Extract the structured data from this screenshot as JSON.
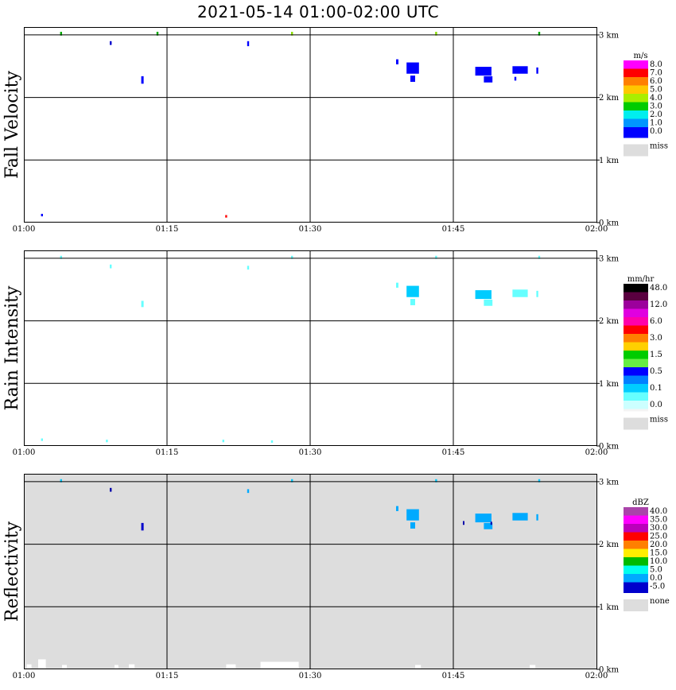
{
  "title": "2021-05-14   01:00-02:00 UTC",
  "x_ticks": [
    "01:00",
    "01:15",
    "01:30",
    "01:45",
    "02:00"
  ],
  "y_ticks": [
    "0 km",
    "1 km",
    "2 km",
    "3 km"
  ],
  "chart_data": [
    {
      "type": "heatmap",
      "title": "Fall Velocity",
      "unit": "m/s",
      "xlim": [
        "01:00",
        "02:00"
      ],
      "ylim_km": [
        0,
        3.05
      ],
      "background": "#ffffff",
      "legend": [
        {
          "label": "8.0",
          "color": "#ff00ff"
        },
        {
          "label": "7.0",
          "color": "#ff0000"
        },
        {
          "label": "6.0",
          "color": "#ff8000"
        },
        {
          "label": "5.0",
          "color": "#ffc800"
        },
        {
          "label": "4.0",
          "color": "#aaee00"
        },
        {
          "label": "3.0",
          "color": "#00cc00"
        },
        {
          "label": "2.0",
          "color": "#00eeee"
        },
        {
          "label": "1.0",
          "color": "#0096ff"
        },
        {
          "label": "0.0",
          "color": "#0000ff"
        }
      ],
      "legend_extra": "#0000ff",
      "missing_label": "miss",
      "missing_color": "#dddddd",
      "echoes": [
        {
          "t": 3.8,
          "h": 2.99,
          "dt": 0.2,
          "dh": 0.06,
          "color": "#00aa00"
        },
        {
          "t": 9.0,
          "h": 2.84,
          "dt": 0.2,
          "dh": 0.06,
          "color": "#0000cc"
        },
        {
          "t": 12.3,
          "h": 2.22,
          "dt": 0.25,
          "dh": 0.12,
          "color": "#0000ff"
        },
        {
          "t": 1.8,
          "h": 0.1,
          "dt": 0.2,
          "dh": 0.04,
          "color": "#0000ff"
        },
        {
          "t": 13.9,
          "h": 2.99,
          "dt": 0.2,
          "dh": 0.06,
          "color": "#00aa00"
        },
        {
          "t": 23.4,
          "h": 2.82,
          "dt": 0.2,
          "dh": 0.08,
          "color": "#0000ff"
        },
        {
          "t": 21.1,
          "h": 0.08,
          "dt": 0.2,
          "dh": 0.04,
          "color": "#ff0000"
        },
        {
          "t": 28.0,
          "h": 2.99,
          "dt": 0.2,
          "dh": 0.06,
          "color": "#88dd00"
        },
        {
          "t": 39.0,
          "h": 2.53,
          "dt": 0.25,
          "dh": 0.08,
          "color": "#0000ff"
        },
        {
          "t": 40.1,
          "h": 2.38,
          "dt": 1.3,
          "dh": 0.18,
          "color": "#0000ff"
        },
        {
          "t": 40.5,
          "h": 2.25,
          "dt": 0.5,
          "dh": 0.1,
          "color": "#0000ff"
        },
        {
          "t": 43.1,
          "h": 2.99,
          "dt": 0.2,
          "dh": 0.06,
          "color": "#88dd00"
        },
        {
          "t": 47.3,
          "h": 2.35,
          "dt": 1.7,
          "dh": 0.14,
          "color": "#0000ff"
        },
        {
          "t": 48.2,
          "h": 2.24,
          "dt": 0.9,
          "dh": 0.1,
          "color": "#0000ff"
        },
        {
          "t": 51.2,
          "h": 2.38,
          "dt": 1.6,
          "dh": 0.12,
          "color": "#0000ff"
        },
        {
          "t": 51.4,
          "h": 2.27,
          "dt": 0.2,
          "dh": 0.06,
          "color": "#0000ff"
        },
        {
          "t": 53.7,
          "h": 2.38,
          "dt": 0.2,
          "dh": 0.1,
          "color": "#0000ff"
        },
        {
          "t": 53.9,
          "h": 2.99,
          "dt": 0.2,
          "dh": 0.06,
          "color": "#00aa00"
        }
      ]
    },
    {
      "type": "heatmap",
      "title": "Rain Intensity",
      "unit": "mm/hr",
      "xlim": [
        "01:00",
        "02:00"
      ],
      "ylim_km": [
        0,
        3.05
      ],
      "background": "#ffffff",
      "legend": [
        {
          "label": "48.0",
          "color": "#000000"
        },
        {
          "label": "",
          "color": "#5a0040"
        },
        {
          "label": "12.0",
          "color": "#9c009c"
        },
        {
          "label": "",
          "color": "#e000e0"
        },
        {
          "label": "6.0",
          "color": "#ff00aa"
        },
        {
          "label": "",
          "color": "#ff0000"
        },
        {
          "label": "3.0",
          "color": "#ff8000"
        },
        {
          "label": "",
          "color": "#ffd000"
        },
        {
          "label": "1.5",
          "color": "#00cc00"
        },
        {
          "label": "",
          "color": "#66ee44"
        },
        {
          "label": "0.5",
          "color": "#0000ff"
        },
        {
          "label": "",
          "color": "#0080ff"
        },
        {
          "label": "0.1",
          "color": "#00ccff"
        },
        {
          "label": "",
          "color": "#66ffff"
        },
        {
          "label": "0.0",
          "color": "#ccffff"
        }
      ],
      "legend_extra": "#f4f4f4",
      "missing_label": "miss",
      "missing_color": "#dddddd",
      "echoes": [
        {
          "t": 3.8,
          "h": 2.99,
          "dt": 0.2,
          "dh": 0.05,
          "color": "#66ffff"
        },
        {
          "t": 9.0,
          "h": 2.84,
          "dt": 0.2,
          "dh": 0.06,
          "color": "#66ffff"
        },
        {
          "t": 12.3,
          "h": 2.22,
          "dt": 0.25,
          "dh": 0.1,
          "color": "#66ffff"
        },
        {
          "t": 1.8,
          "h": 0.08,
          "dt": 0.2,
          "dh": 0.04,
          "color": "#66ffff"
        },
        {
          "t": 8.6,
          "h": 0.06,
          "dt": 0.2,
          "dh": 0.04,
          "color": "#66ffff"
        },
        {
          "t": 20.8,
          "h": 0.06,
          "dt": 0.2,
          "dh": 0.04,
          "color": "#66ffff"
        },
        {
          "t": 25.9,
          "h": 0.05,
          "dt": 0.2,
          "dh": 0.04,
          "color": "#66ffff"
        },
        {
          "t": 23.4,
          "h": 2.82,
          "dt": 0.2,
          "dh": 0.06,
          "color": "#66ffff"
        },
        {
          "t": 28.0,
          "h": 2.99,
          "dt": 0.2,
          "dh": 0.05,
          "color": "#66ffff"
        },
        {
          "t": 39.0,
          "h": 2.53,
          "dt": 0.25,
          "dh": 0.08,
          "color": "#66ffff"
        },
        {
          "t": 40.1,
          "h": 2.38,
          "dt": 1.3,
          "dh": 0.18,
          "color": "#00ccff"
        },
        {
          "t": 40.5,
          "h": 2.25,
          "dt": 0.5,
          "dh": 0.1,
          "color": "#66ffff"
        },
        {
          "t": 43.1,
          "h": 2.99,
          "dt": 0.2,
          "dh": 0.05,
          "color": "#66ffff"
        },
        {
          "t": 47.3,
          "h": 2.35,
          "dt": 1.7,
          "dh": 0.14,
          "color": "#00ccff"
        },
        {
          "t": 48.2,
          "h": 2.24,
          "dt": 0.9,
          "dh": 0.1,
          "color": "#66ffff"
        },
        {
          "t": 51.2,
          "h": 2.38,
          "dt": 1.6,
          "dh": 0.12,
          "color": "#66ffff"
        },
        {
          "t": 53.7,
          "h": 2.38,
          "dt": 0.2,
          "dh": 0.1,
          "color": "#66ffff"
        },
        {
          "t": 53.9,
          "h": 2.99,
          "dt": 0.2,
          "dh": 0.05,
          "color": "#66ffff"
        }
      ]
    },
    {
      "type": "heatmap",
      "title": "Reflectivity",
      "unit": "dBZ",
      "xlim": [
        "01:00",
        "02:00"
      ],
      "ylim_km": [
        0,
        3.05
      ],
      "background": "#dddddd",
      "legend": [
        {
          "label": "40.0",
          "color": "#aa44aa"
        },
        {
          "label": "35.0",
          "color": "#ff00ff"
        },
        {
          "label": "30.0",
          "color": "#bb00bb"
        },
        {
          "label": "25.0",
          "color": "#ff0000"
        },
        {
          "label": "20.0",
          "color": "#ff8000"
        },
        {
          "label": "15.0",
          "color": "#ffee00"
        },
        {
          "label": "10.0",
          "color": "#00bb00"
        },
        {
          "label": "5.0",
          "color": "#00ffee"
        },
        {
          "label": "0.0",
          "color": "#00aaff"
        },
        {
          "label": "-5.0",
          "color": "#0000cc"
        }
      ],
      "legend_extra": "#0000cc",
      "missing_label": "none",
      "missing_color": "#dddddd",
      "echoes": [
        {
          "t": 3.8,
          "h": 2.99,
          "dt": 0.2,
          "dh": 0.05,
          "color": "#00ccff"
        },
        {
          "t": 9.0,
          "h": 2.84,
          "dt": 0.2,
          "dh": 0.06,
          "color": "#0000aa"
        },
        {
          "t": 12.3,
          "h": 2.22,
          "dt": 0.25,
          "dh": 0.12,
          "color": "#0000cc"
        },
        {
          "t": 23.4,
          "h": 2.82,
          "dt": 0.2,
          "dh": 0.06,
          "color": "#00aaff"
        },
        {
          "t": 28.0,
          "h": 2.99,
          "dt": 0.2,
          "dh": 0.05,
          "color": "#00ccff"
        },
        {
          "t": 39.0,
          "h": 2.53,
          "dt": 0.25,
          "dh": 0.08,
          "color": "#00aaff"
        },
        {
          "t": 40.1,
          "h": 2.38,
          "dt": 1.3,
          "dh": 0.18,
          "color": "#00aaff"
        },
        {
          "t": 40.5,
          "h": 2.25,
          "dt": 0.5,
          "dh": 0.1,
          "color": "#00aaff"
        },
        {
          "t": 43.1,
          "h": 2.99,
          "dt": 0.2,
          "dh": 0.05,
          "color": "#00ccff"
        },
        {
          "t": 46.0,
          "h": 2.31,
          "dt": 0.15,
          "dh": 0.06,
          "color": "#0000aa"
        },
        {
          "t": 47.3,
          "h": 2.35,
          "dt": 1.7,
          "dh": 0.14,
          "color": "#00aaff"
        },
        {
          "t": 48.2,
          "h": 2.24,
          "dt": 0.9,
          "dh": 0.1,
          "color": "#00aaff"
        },
        {
          "t": 48.9,
          "h": 2.31,
          "dt": 0.15,
          "dh": 0.05,
          "color": "#0000aa"
        },
        {
          "t": 51.2,
          "h": 2.38,
          "dt": 1.6,
          "dh": 0.12,
          "color": "#00aaff"
        },
        {
          "t": 53.7,
          "h": 2.38,
          "dt": 0.2,
          "dh": 0.1,
          "color": "#00aaff"
        },
        {
          "t": 53.9,
          "h": 2.99,
          "dt": 0.2,
          "dh": 0.05,
          "color": "#00ccff"
        },
        {
          "t": 0.3,
          "h": 0.02,
          "dt": 0.5,
          "dh": 0.06,
          "color": "#ffffff"
        },
        {
          "t": 1.5,
          "h": 0.02,
          "dt": 0.8,
          "dh": 0.14,
          "color": "#ffffff"
        },
        {
          "t": 4.0,
          "h": 0.02,
          "dt": 0.5,
          "dh": 0.05,
          "color": "#ffffff"
        },
        {
          "t": 9.5,
          "h": 0.02,
          "dt": 0.4,
          "dh": 0.05,
          "color": "#ffffff"
        },
        {
          "t": 11.0,
          "h": 0.02,
          "dt": 0.6,
          "dh": 0.06,
          "color": "#ffffff"
        },
        {
          "t": 21.2,
          "h": 0.02,
          "dt": 1.0,
          "dh": 0.06,
          "color": "#ffffff"
        },
        {
          "t": 24.8,
          "h": 0.02,
          "dt": 4.0,
          "dh": 0.1,
          "color": "#ffffff"
        },
        {
          "t": 41.0,
          "h": 0.02,
          "dt": 0.6,
          "dh": 0.05,
          "color": "#ffffff"
        },
        {
          "t": 53.0,
          "h": 0.02,
          "dt": 0.6,
          "dh": 0.05,
          "color": "#ffffff"
        }
      ]
    }
  ]
}
